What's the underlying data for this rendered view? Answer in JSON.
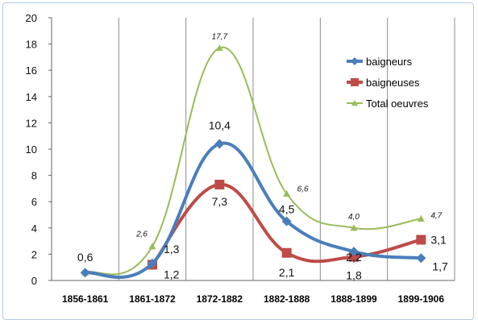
{
  "chart_data": {
    "type": "line",
    "title": "",
    "xlabel": "",
    "ylabel": "",
    "categories": [
      "1856-1861",
      "1861-1872",
      "1872-1882",
      "1882-1888",
      "1888-1899",
      "1899-1906"
    ],
    "ylim": [
      0,
      20
    ],
    "yticks": [
      "0",
      "2",
      "4",
      "6",
      "8",
      "10",
      "12",
      "14",
      "16",
      "18",
      "20"
    ],
    "grid": "vertical-category-lines",
    "legend_position": "top-right",
    "series": [
      {
        "name": "baigneurs",
        "values": [
          0.6,
          1.3,
          10.4,
          4.5,
          2.2,
          1.7
        ],
        "labels": [
          "0,6",
          "1,3",
          "10,4",
          "4,5",
          "2,2",
          "1,7"
        ],
        "color": "#4a7ebb",
        "marker": "diamond"
      },
      {
        "name": "baigneuses",
        "values": [
          null,
          1.2,
          7.3,
          2.1,
          1.8,
          3.1
        ],
        "labels": [
          "",
          "1,2",
          "7,3",
          "2,1",
          "1,8",
          "3,1"
        ],
        "color": "#be4b48",
        "marker": "square"
      },
      {
        "name": "Total oeuvres",
        "values": [
          0.6,
          2.6,
          17.7,
          6.6,
          4.0,
          4.7
        ],
        "labels": [
          "",
          "2,6",
          "17,7",
          "6,6",
          "4,0",
          "4,7"
        ],
        "color": "#9bbb59",
        "marker": "triangle"
      }
    ]
  }
}
